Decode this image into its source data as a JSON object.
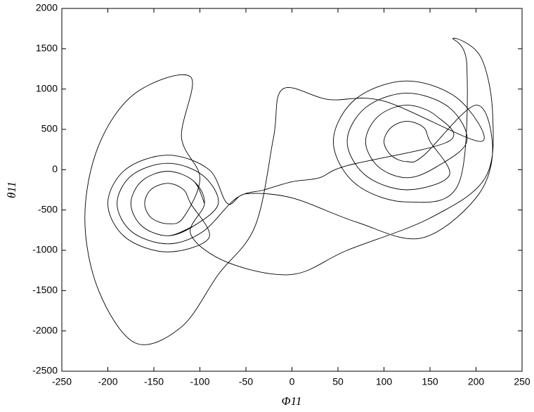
{
  "chart_data": {
    "type": "line",
    "xlabel": "Φ11",
    "ylabel": "θ11",
    "xlim": [
      -250,
      250
    ],
    "xticks": [
      -250,
      -200,
      -150,
      -100,
      -50,
      0,
      50,
      100,
      150,
      200,
      250
    ],
    "ylim": [
      -2500,
      2000
    ],
    "yticks": [
      -2500,
      -2000,
      -1500,
      -1000,
      -500,
      0,
      500,
      1000,
      1500,
      2000
    ],
    "grid": false,
    "series": [
      {
        "color": "#000000",
        "x": [
          -95,
          -107,
          -135,
          -163,
          -175,
          -163,
          -135,
          -107,
          -80,
          -97,
          -135,
          -174,
          -190,
          -174,
          -135,
          -97,
          -60,
          -30,
          0,
          30,
          60,
          170,
          157,
          125,
          94,
          80,
          94,
          125,
          157,
          190,
          171,
          125,
          80,
          60,
          80,
          125,
          171,
          150,
          143,
          125,
          108,
          100,
          108,
          125,
          143,
          200,
          218,
          200,
          140,
          70,
          0,
          -50,
          -70,
          -90,
          -135,
          -181,
          -200,
          -181,
          -135,
          -90,
          -110,
          -118,
          -135,
          -153,
          -160,
          -153,
          -135,
          -118,
          -100,
          -120,
          -110,
          -170,
          -210,
          -225,
          -210,
          -170,
          -120,
          -80,
          -40,
          -20,
          -10,
          40,
          100,
          205,
          181,
          125,
          69,
          45,
          69,
          125,
          181,
          190,
          175,
          205,
          218,
          210,
          150,
          60,
          0,
          -70,
          -110,
          -95,
          -107,
          -135,
          -163,
          -175,
          -163,
          -135,
          -107
        ],
        "values": [
          -420,
          -140,
          -20,
          -140,
          -420,
          -700,
          -820,
          -700,
          -420,
          -70,
          80,
          -70,
          -420,
          -770,
          -920,
          -770,
          -350,
          -250,
          -150,
          -100,
          50,
          350,
          665,
          800,
          665,
          350,
          35,
          -100,
          35,
          350,
          770,
          950,
          770,
          350,
          -70,
          -250,
          -70,
          350,
          525,
          600,
          525,
          350,
          175,
          100,
          175,
          800,
          250,
          -350,
          -850,
          -650,
          -350,
          -300,
          -420,
          0,
          180,
          0,
          -420,
          -840,
          -1020,
          -840,
          -420,
          -245,
          -170,
          -245,
          -420,
          -595,
          -670,
          -595,
          -100,
          400,
          1150,
          950,
          300,
          -600,
          -1500,
          -2150,
          -1950,
          -1300,
          -700,
          400,
          1000,
          870,
          850,
          350,
          875,
          1100,
          875,
          350,
          -175,
          -400,
          -175,
          1300,
          1630,
          1400,
          700,
          -100,
          -600,
          -1000,
          -1300,
          -1150,
          -800,
          -420,
          -140,
          -20,
          -140,
          -420,
          -700,
          -820,
          -700
        ]
      }
    ]
  }
}
